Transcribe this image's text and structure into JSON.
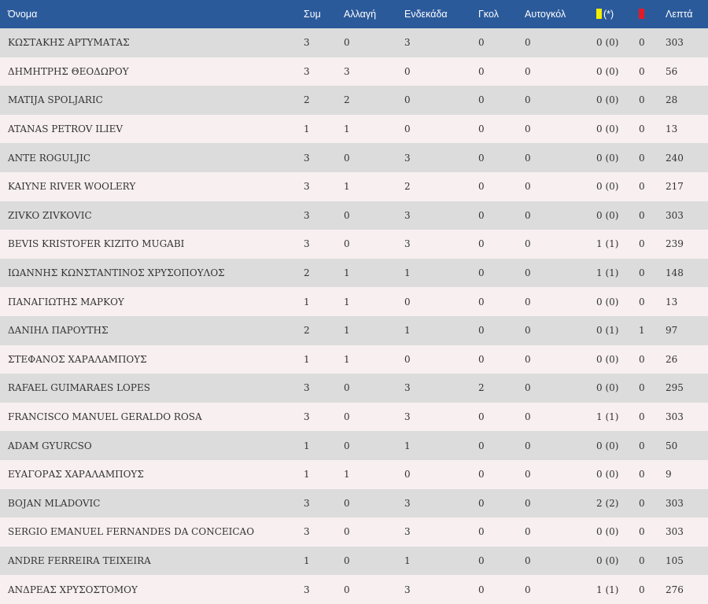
{
  "colors": {
    "header_bg": "#2b5a9b",
    "row_odd": "#dcdcdc",
    "row_even": "#f7eff0",
    "yellow_card": "#f5ee00",
    "red_card": "#e51b24"
  },
  "columns": {
    "name": "Όνομα",
    "appearances": "Συμ",
    "substitute": "Αλλαγή",
    "starting": "Ενδεκάδα",
    "goals": "Γκολ",
    "own_goals": "Αυτογκόλ",
    "yellow_suffix": "(*)",
    "yellow_icon": "yellow-card-icon",
    "red_icon": "red-card-icon",
    "minutes": "Λεπτά"
  },
  "rows": [
    {
      "name": "ΚΩΣΤΑΚΗΣ ΑΡΤΥΜΑΤΑΣ",
      "apps": "3",
      "sub": "0",
      "start": "3",
      "goals": "0",
      "own_goals": "0",
      "yellow": "0 (0)",
      "red": "0",
      "minutes": "303"
    },
    {
      "name": "ΔΗΜΗΤΡΗΣ ΘΕΟΔΩΡΟΥ",
      "apps": "3",
      "sub": "3",
      "start": "0",
      "goals": "0",
      "own_goals": "0",
      "yellow": "0 (0)",
      "red": "0",
      "minutes": "56"
    },
    {
      "name": "MATIJA SPOLJARIC",
      "apps": "2",
      "sub": "2",
      "start": "0",
      "goals": "0",
      "own_goals": "0",
      "yellow": "0 (0)",
      "red": "0",
      "minutes": "28"
    },
    {
      "name": "ATANAS PETROV ILIEV",
      "apps": "1",
      "sub": "1",
      "start": "0",
      "goals": "0",
      "own_goals": "0",
      "yellow": "0 (0)",
      "red": "0",
      "minutes": "13"
    },
    {
      "name": "ANTE ROGULJIC",
      "apps": "3",
      "sub": "0",
      "start": "3",
      "goals": "0",
      "own_goals": "0",
      "yellow": "0 (0)",
      "red": "0",
      "minutes": "240"
    },
    {
      "name": "KAIYNE RIVER WOOLERY",
      "apps": "3",
      "sub": "1",
      "start": "2",
      "goals": "0",
      "own_goals": "0",
      "yellow": "0 (0)",
      "red": "0",
      "minutes": "217"
    },
    {
      "name": "ZIVKO ZIVKOVIC",
      "apps": "3",
      "sub": "0",
      "start": "3",
      "goals": "0",
      "own_goals": "0",
      "yellow": "0 (0)",
      "red": "0",
      "minutes": "303"
    },
    {
      "name": "BEVIS KRISTOFER KIZITO MUGABI",
      "apps": "3",
      "sub": "0",
      "start": "3",
      "goals": "0",
      "own_goals": "0",
      "yellow": "1 (1)",
      "red": "0",
      "minutes": "239"
    },
    {
      "name": "ΙΩΑΝΝΗΣ ΚΩΝΣΤΑΝΤΙΝΟΣ ΧΡΥΣΟΠΟΥΛΟΣ",
      "apps": "2",
      "sub": "1",
      "start": "1",
      "goals": "0",
      "own_goals": "0",
      "yellow": "1 (1)",
      "red": "0",
      "minutes": "148"
    },
    {
      "name": "ΠΑΝΑΓΙΩΤΗΣ ΜΑΡΚΟΥ",
      "apps": "1",
      "sub": "1",
      "start": "0",
      "goals": "0",
      "own_goals": "0",
      "yellow": "0 (0)",
      "red": "0",
      "minutes": "13"
    },
    {
      "name": "ΔΑΝΙΗΛ ΠΑΡΟΥΤΗΣ",
      "apps": "2",
      "sub": "1",
      "start": "1",
      "goals": "0",
      "own_goals": "0",
      "yellow": "0 (1)",
      "red": "1",
      "minutes": "97"
    },
    {
      "name": "ΣΤΕΦΑΝΟΣ ΧΑΡΑΛΑΜΠΟΥΣ",
      "apps": "1",
      "sub": "1",
      "start": "0",
      "goals": "0",
      "own_goals": "0",
      "yellow": "0 (0)",
      "red": "0",
      "minutes": "26"
    },
    {
      "name": "RAFAEL GUIMARAES LOPES",
      "apps": "3",
      "sub": "0",
      "start": "3",
      "goals": "2",
      "own_goals": "0",
      "yellow": "0 (0)",
      "red": "0",
      "minutes": "295"
    },
    {
      "name": "FRANCISCO MANUEL GERALDO ROSA",
      "apps": "3",
      "sub": "0",
      "start": "3",
      "goals": "0",
      "own_goals": "0",
      "yellow": "1 (1)",
      "red": "0",
      "minutes": "303"
    },
    {
      "name": "ADAM GYURCSO",
      "apps": "1",
      "sub": "0",
      "start": "1",
      "goals": "0",
      "own_goals": "0",
      "yellow": "0 (0)",
      "red": "0",
      "minutes": "50"
    },
    {
      "name": "ΕΥΑΓΟΡΑΣ ΧΑΡΑΛΑΜΠΟΥΣ",
      "apps": "1",
      "sub": "1",
      "start": "0",
      "goals": "0",
      "own_goals": "0",
      "yellow": "0 (0)",
      "red": "0",
      "minutes": "9"
    },
    {
      "name": "BOJAN MLADOVIC",
      "apps": "3",
      "sub": "0",
      "start": "3",
      "goals": "0",
      "own_goals": "0",
      "yellow": "2 (2)",
      "red": "0",
      "minutes": "303"
    },
    {
      "name": "SERGIO EMANUEL FERNANDES DA CONCEICAO",
      "apps": "3",
      "sub": "0",
      "start": "3",
      "goals": "0",
      "own_goals": "0",
      "yellow": "0 (0)",
      "red": "0",
      "minutes": "303"
    },
    {
      "name": "ANDRE FERREIRA TEIXEIRA",
      "apps": "1",
      "sub": "0",
      "start": "1",
      "goals": "0",
      "own_goals": "0",
      "yellow": "0 (0)",
      "red": "0",
      "minutes": "105"
    },
    {
      "name": "ΑΝΔΡΕΑΣ ΧΡΥΣΟΣΤΟΜΟΥ",
      "apps": "3",
      "sub": "0",
      "start": "3",
      "goals": "0",
      "own_goals": "0",
      "yellow": "1 (1)",
      "red": "0",
      "minutes": "276"
    }
  ]
}
